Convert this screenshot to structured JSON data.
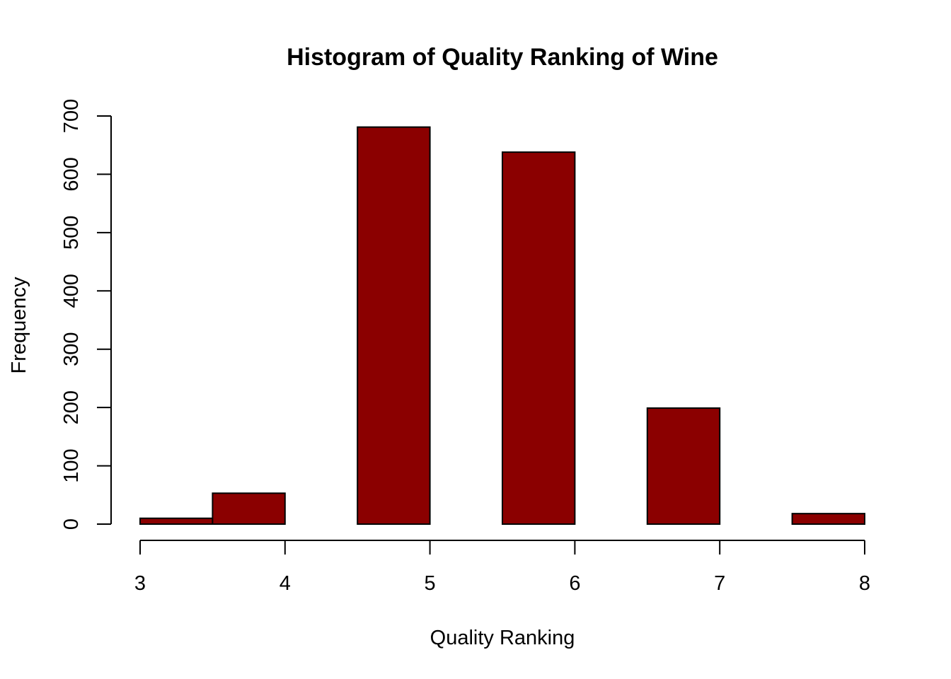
{
  "chart_data": {
    "type": "bar",
    "title": "Histogram of Quality Ranking of Wine",
    "xlabel": "Quality Ranking",
    "ylabel": "Frequency",
    "bar_color": "#8b0000",
    "bins": [
      {
        "start": 3.0,
        "end": 3.5,
        "count": 10
      },
      {
        "start": 3.5,
        "end": 4.0,
        "count": 53
      },
      {
        "start": 4.0,
        "end": 4.5,
        "count": 0
      },
      {
        "start": 4.5,
        "end": 5.0,
        "count": 681
      },
      {
        "start": 5.0,
        "end": 5.5,
        "count": 0
      },
      {
        "start": 5.5,
        "end": 6.0,
        "count": 638
      },
      {
        "start": 6.0,
        "end": 6.5,
        "count": 0
      },
      {
        "start": 6.5,
        "end": 7.0,
        "count": 199
      },
      {
        "start": 7.0,
        "end": 7.5,
        "count": 0
      },
      {
        "start": 7.5,
        "end": 8.0,
        "count": 18
      }
    ],
    "xlim": [
      3,
      8
    ],
    "ylim": [
      0,
      700
    ],
    "xticks": [
      "3",
      "4",
      "5",
      "6",
      "7",
      "8"
    ],
    "yticks": [
      "0",
      "100",
      "200",
      "300",
      "400",
      "500",
      "600",
      "700"
    ],
    "grid": false
  }
}
